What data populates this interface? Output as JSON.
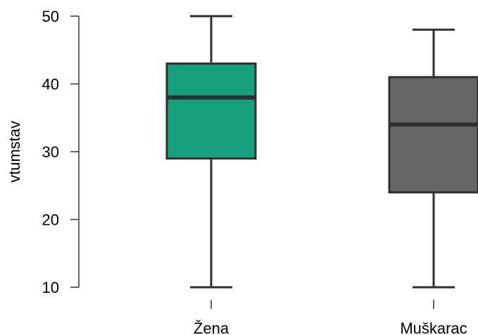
{
  "chart_data": {
    "type": "boxplot",
    "title": "",
    "xlabel": "",
    "ylabel": "vtumstav",
    "ylim": [
      10,
      50
    ],
    "yticks": [
      10,
      20,
      30,
      40,
      50
    ],
    "grid": false,
    "legend": "none",
    "categories": [
      "Žena",
      "Muškarac"
    ],
    "boxes": [
      {
        "label": "Žena",
        "min": 10,
        "q1": 29,
        "median": 38,
        "q3": 43,
        "max": 50,
        "color": "#17a07c"
      },
      {
        "label": "Muškarac",
        "min": 10,
        "q1": 24,
        "median": 34,
        "q3": 41,
        "max": 48,
        "color": "#666666"
      }
    ],
    "colors": {
      "outline": "#2f2f2f",
      "axis": "#333333"
    }
  }
}
